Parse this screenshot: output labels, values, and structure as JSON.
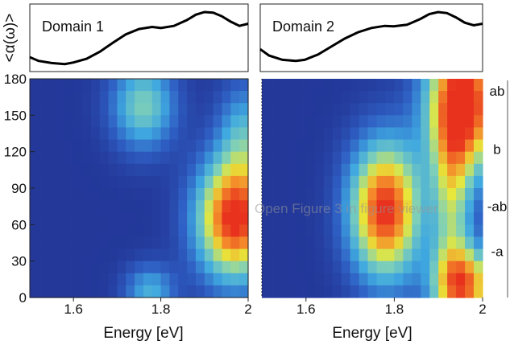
{
  "chart_data": {
    "type": "heatmap",
    "ylabel": "<α(ω)>",
    "xlabel": "Energy [eV]",
    "x_ticks": [
      "1.6",
      "1.8",
      "2"
    ],
    "y_ticks": [
      "0",
      "30",
      "60",
      "90",
      "120",
      "150",
      "180"
    ],
    "xlim": [
      1.5,
      2.0
    ],
    "ylim": [
      0,
      180
    ],
    "right_axis_labels": [
      {
        "label": "ab",
        "y": 170
      },
      {
        "label": "b",
        "y": 122
      },
      {
        "label": "-ab",
        "y": 75
      },
      {
        "label": "-a",
        "y": 38
      }
    ],
    "colormap": [
      "#1f2c8c",
      "#2f5fc4",
      "#3fa8e0",
      "#7fd0b8",
      "#e8e83a",
      "#f48a2a",
      "#e8321e"
    ],
    "panels": [
      {
        "label": "Domain 1",
        "spectrum": {
          "x": [
            1.5,
            1.52,
            1.55,
            1.58,
            1.6,
            1.63,
            1.66,
            1.69,
            1.72,
            1.75,
            1.78,
            1.8,
            1.83,
            1.86,
            1.88,
            1.9,
            1.92,
            1.94,
            1.96,
            1.98,
            2.0
          ],
          "y": [
            0.15,
            0.08,
            0.04,
            0.02,
            0.05,
            0.12,
            0.25,
            0.42,
            0.58,
            0.68,
            0.72,
            0.7,
            0.74,
            0.85,
            0.95,
            1.0,
            0.99,
            0.92,
            0.82,
            0.74,
            0.78
          ]
        },
        "features": [
          {
            "e": 1.76,
            "a": 158,
            "se": 0.05,
            "sa": 25,
            "amp": 0.45
          },
          {
            "e": 1.775,
            "a": 5,
            "se": 0.04,
            "sa": 15,
            "amp": 0.32
          },
          {
            "e": 1.97,
            "a": 65,
            "se": 0.06,
            "sa": 34,
            "amp": 1.0
          },
          {
            "e": 1.99,
            "a": 135,
            "se": 0.04,
            "sa": 30,
            "amp": 0.3
          }
        ]
      },
      {
        "label": "Domain 2",
        "spectrum": {
          "x": [
            1.5,
            1.52,
            1.55,
            1.58,
            1.6,
            1.63,
            1.66,
            1.69,
            1.72,
            1.75,
            1.78,
            1.8,
            1.83,
            1.86,
            1.88,
            1.9,
            1.92,
            1.94,
            1.96,
            1.98,
            2.0
          ],
          "y": [
            0.3,
            0.18,
            0.1,
            0.08,
            0.1,
            0.2,
            0.35,
            0.5,
            0.62,
            0.7,
            0.74,
            0.73,
            0.76,
            0.87,
            0.96,
            1.0,
            0.98,
            0.9,
            0.8,
            0.75,
            0.78
          ]
        },
        "features": [
          {
            "e": 1.78,
            "a": 72,
            "se": 0.055,
            "sa": 38,
            "amp": 0.98
          },
          {
            "e": 1.96,
            "a": 160,
            "se": 0.06,
            "sa": 40,
            "amp": 1.0
          },
          {
            "e": 1.96,
            "a": 10,
            "se": 0.05,
            "sa": 22,
            "amp": 0.8
          },
          {
            "e": 1.93,
            "a": 80,
            "se": 0.03,
            "sa": 60,
            "amp": 0.45
          }
        ]
      }
    ]
  },
  "overlay_text": "Open Figure 3 in figure viewer"
}
